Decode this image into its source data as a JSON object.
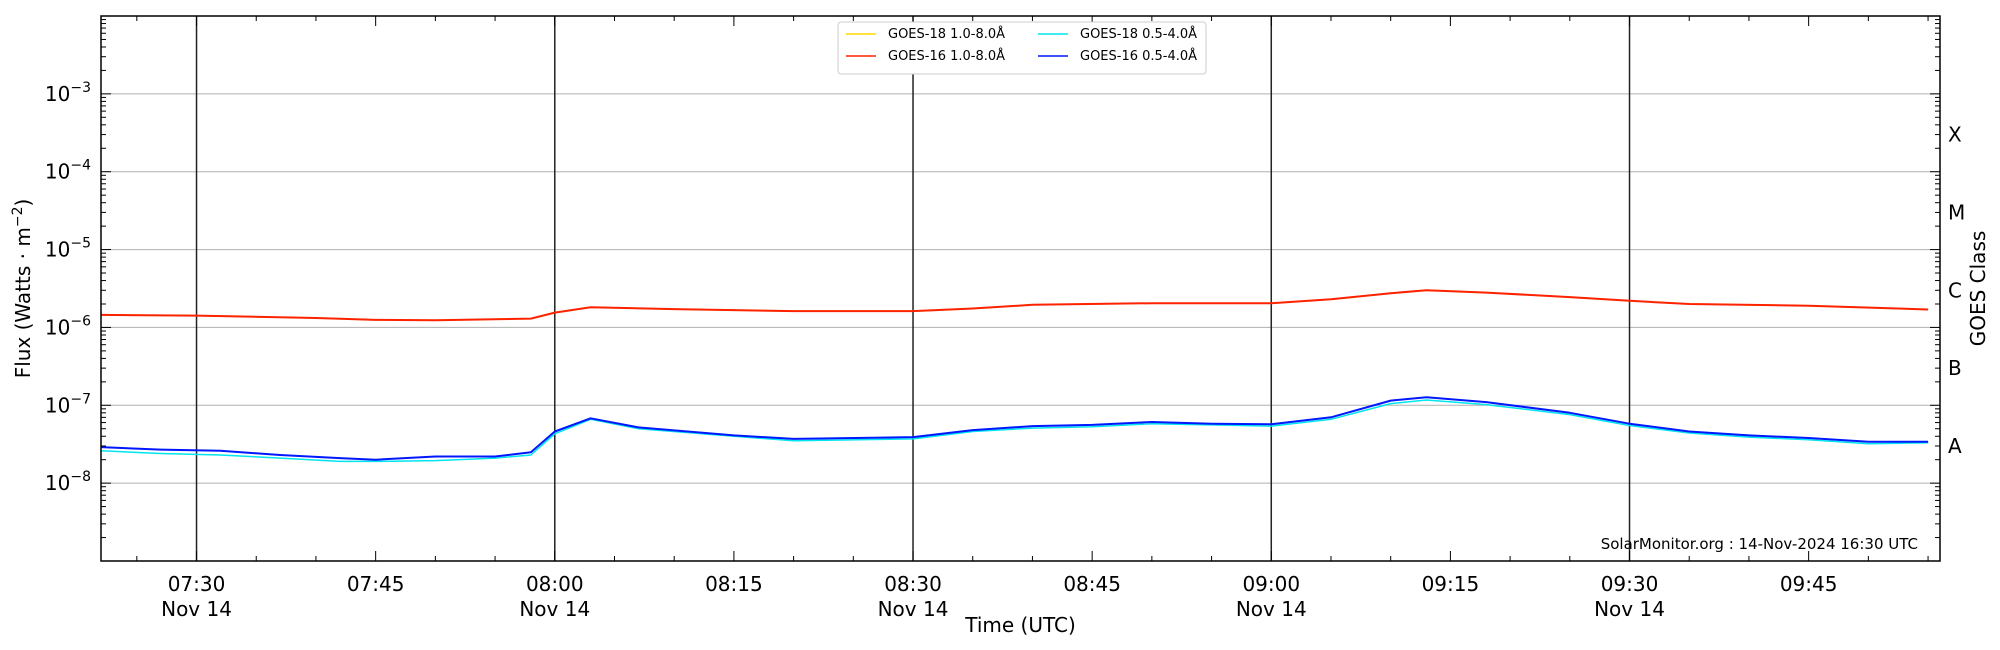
{
  "chart_data": {
    "type": "line",
    "title": "",
    "xlabel": "Time (UTC)",
    "ylabel": "Flux (Watts · m⁻²)",
    "ylabel_parts": [
      "Flux (Watts · m",
      "−2",
      ")"
    ],
    "y2label": "GOES Class",
    "yscale": "log",
    "ylim": [
      1e-09,
      0.01
    ],
    "xlim": [
      "07:22",
      "09:56"
    ],
    "y_ticks": [
      {
        "value": 1e-08,
        "base": "10",
        "exp": "−8"
      },
      {
        "value": 1e-07,
        "base": "10",
        "exp": "−7"
      },
      {
        "value": 1e-06,
        "base": "10",
        "exp": "−6"
      },
      {
        "value": 1e-05,
        "base": "10",
        "exp": "−5"
      },
      {
        "value": 0.0001,
        "base": "10",
        "exp": "−4"
      },
      {
        "value": 0.001,
        "base": "10",
        "exp": "−3"
      }
    ],
    "x_ticks": [
      {
        "time": "07:30",
        "label": "07:30",
        "date": "Nov 14",
        "vline": true
      },
      {
        "time": "07:45",
        "label": "07:45",
        "date": "",
        "vline": false
      },
      {
        "time": "08:00",
        "label": "08:00",
        "date": "Nov 14",
        "vline": true
      },
      {
        "time": "08:15",
        "label": "08:15",
        "date": "",
        "vline": false
      },
      {
        "time": "08:30",
        "label": "08:30",
        "date": "Nov 14",
        "vline": true
      },
      {
        "time": "08:45",
        "label": "08:45",
        "date": "",
        "vline": false
      },
      {
        "time": "09:00",
        "label": "09:00",
        "date": "Nov 14",
        "vline": true
      },
      {
        "time": "09:15",
        "label": "09:15",
        "date": "",
        "vline": false
      },
      {
        "time": "09:30",
        "label": "09:30",
        "date": "Nov 14",
        "vline": true
      },
      {
        "time": "09:45",
        "label": "09:45",
        "date": "",
        "vline": false
      }
    ],
    "goes_classes": [
      {
        "label": "A",
        "value": 3e-08
      },
      {
        "label": "B",
        "value": 3e-07
      },
      {
        "label": "C",
        "value": 3e-06
      },
      {
        "label": "M",
        "value": 3e-05
      },
      {
        "label": "X",
        "value": 0.0003
      }
    ],
    "grid": "horizontal",
    "legend_position": "top-center",
    "legend": [
      {
        "name": "GOES-18 1.0-8.0Å",
        "color": "#ffd700"
      },
      {
        "name": "GOES-16 1.0-8.0Å",
        "color": "#ff2200"
      },
      {
        "name": "GOES-18 0.5-4.0Å",
        "color": "#00e5ee"
      },
      {
        "name": "GOES-16 0.5-4.0Å",
        "color": "#0018ff"
      }
    ],
    "series": [
      {
        "name": "GOES-18 1.0-8.0Å",
        "color": "#ffd700",
        "x": [
          "07:22",
          "07:30",
          "07:40",
          "07:45",
          "07:50",
          "07:58",
          "08:00",
          "08:03",
          "08:10",
          "08:20",
          "08:30",
          "08:35",
          "08:40",
          "08:50",
          "09:00",
          "09:05",
          "09:10",
          "09:13",
          "09:18",
          "09:25",
          "09:30",
          "09:35",
          "09:45",
          "09:55"
        ],
        "y": [
          1.45e-06,
          1.42e-06,
          1.32e-06,
          1.25e-06,
          1.24e-06,
          1.3e-06,
          1.55e-06,
          1.82e-06,
          1.72e-06,
          1.62e-06,
          1.62e-06,
          1.75e-06,
          1.95e-06,
          2.05e-06,
          2.05e-06,
          2.3e-06,
          2.75e-06,
          3e-06,
          2.8e-06,
          2.45e-06,
          2.2e-06,
          2e-06,
          1.9e-06,
          1.7e-06
        ]
      },
      {
        "name": "GOES-16 1.0-8.0Å",
        "color": "#ff2200",
        "x": [
          "07:22",
          "07:30",
          "07:40",
          "07:45",
          "07:50",
          "07:58",
          "08:00",
          "08:03",
          "08:10",
          "08:20",
          "08:30",
          "08:35",
          "08:40",
          "08:50",
          "09:00",
          "09:05",
          "09:10",
          "09:13",
          "09:18",
          "09:25",
          "09:30",
          "09:35",
          "09:45",
          "09:55"
        ],
        "y": [
          1.45e-06,
          1.42e-06,
          1.32e-06,
          1.25e-06,
          1.24e-06,
          1.3e-06,
          1.55e-06,
          1.82e-06,
          1.72e-06,
          1.62e-06,
          1.62e-06,
          1.75e-06,
          1.95e-06,
          2.05e-06,
          2.05e-06,
          2.3e-06,
          2.75e-06,
          3e-06,
          2.8e-06,
          2.45e-06,
          2.2e-06,
          2e-06,
          1.9e-06,
          1.7e-06
        ]
      },
      {
        "name": "GOES-18 0.5-4.0Å",
        "color": "#00e5ee",
        "x": [
          "07:22",
          "07:27",
          "07:32",
          "07:37",
          "07:42",
          "07:45",
          "07:50",
          "07:55",
          "07:58",
          "08:00",
          "08:03",
          "08:07",
          "08:15",
          "08:20",
          "08:30",
          "08:35",
          "08:40",
          "08:45",
          "08:50",
          "08:55",
          "09:00",
          "09:05",
          "09:10",
          "09:13",
          "09:18",
          "09:25",
          "09:30",
          "09:35",
          "09:40",
          "09:45",
          "09:50",
          "09:55"
        ],
        "y": [
          2.6e-08,
          2.4e-08,
          2.3e-08,
          2.1e-08,
          1.9e-08,
          1.9e-08,
          1.95e-08,
          2.1e-08,
          2.3e-08,
          4.3e-08,
          6.6e-08,
          5e-08,
          4e-08,
          3.5e-08,
          3.7e-08,
          4.6e-08,
          5.1e-08,
          5.3e-08,
          5.8e-08,
          5.6e-08,
          5.4e-08,
          6.6e-08,
          1.05e-07,
          1.17e-07,
          1.02e-07,
          7.6e-08,
          5.5e-08,
          4.4e-08,
          3.9e-08,
          3.6e-08,
          3.2e-08,
          3.3e-08
        ]
      },
      {
        "name": "GOES-16 0.5-4.0Å",
        "color": "#0018ff",
        "x": [
          "07:22",
          "07:27",
          "07:32",
          "07:37",
          "07:42",
          "07:45",
          "07:50",
          "07:55",
          "07:58",
          "08:00",
          "08:03",
          "08:07",
          "08:15",
          "08:20",
          "08:30",
          "08:35",
          "08:40",
          "08:45",
          "08:50",
          "08:55",
          "09:00",
          "09:05",
          "09:10",
          "09:13",
          "09:18",
          "09:25",
          "09:30",
          "09:35",
          "09:40",
          "09:45",
          "09:50",
          "09:55"
        ],
        "y": [
          2.9e-08,
          2.7e-08,
          2.6e-08,
          2.3e-08,
          2.1e-08,
          2e-08,
          2.2e-08,
          2.2e-08,
          2.5e-08,
          4.6e-08,
          6.8e-08,
          5.2e-08,
          4.1e-08,
          3.7e-08,
          3.9e-08,
          4.8e-08,
          5.4e-08,
          5.6e-08,
          6.1e-08,
          5.8e-08,
          5.7e-08,
          7e-08,
          1.15e-07,
          1.27e-07,
          1.1e-07,
          8e-08,
          5.8e-08,
          4.6e-08,
          4.1e-08,
          3.8e-08,
          3.4e-08,
          3.4e-08
        ]
      }
    ],
    "annotation": "SolarMonitor.org : 14-Nov-2024 16:30 UTC"
  }
}
